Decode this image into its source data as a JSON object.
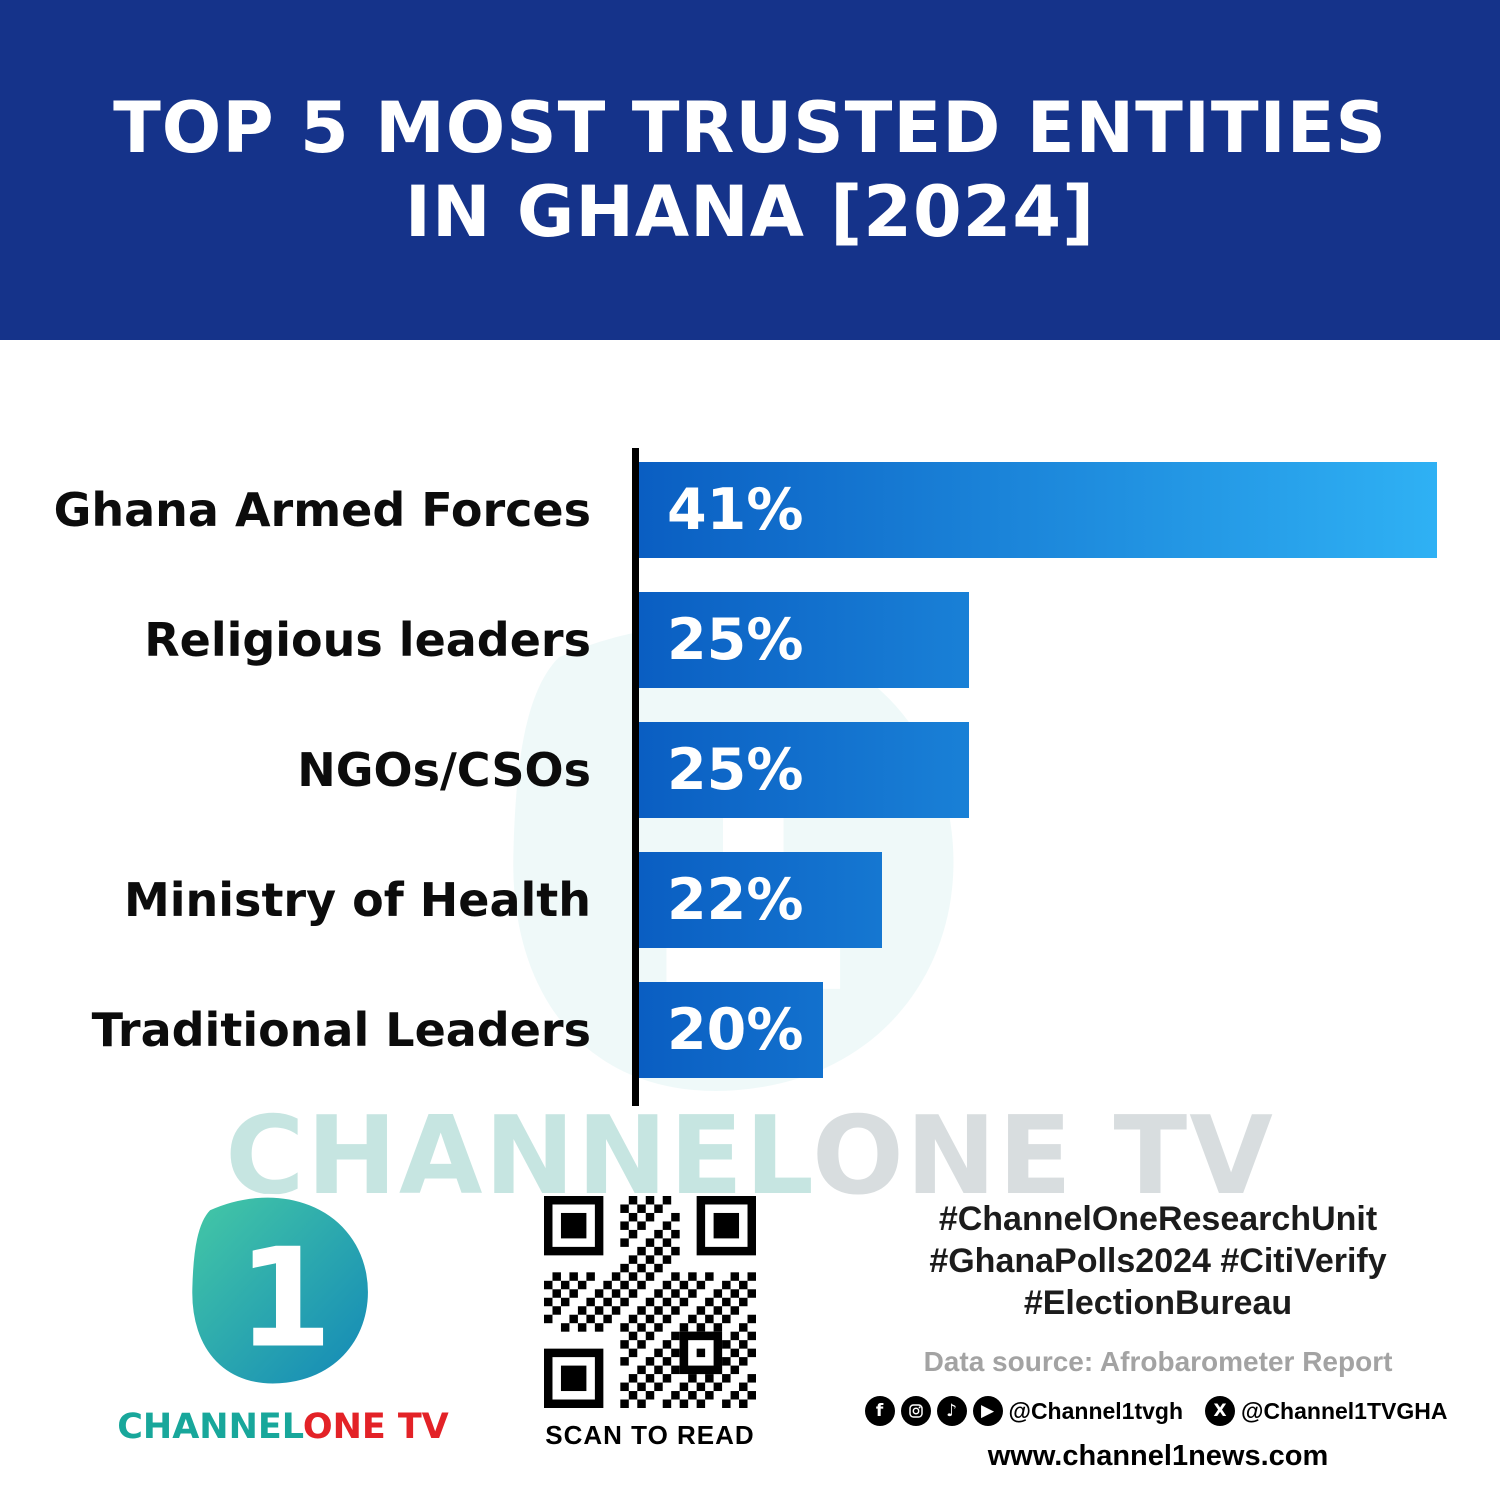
{
  "header": {
    "title_line1": "TOP 5 MOST TRUSTED ENTITIES",
    "title_line2": "IN GHANA [2024]"
  },
  "chart_data": {
    "type": "bar",
    "orientation": "horizontal",
    "title": "Top 5 Most Trusted Entities in Ghana [2024]",
    "categories": [
      "Ghana Armed Forces",
      "Religious leaders",
      "NGOs/CSOs",
      "Ministry of Health",
      "Traditional Leaders"
    ],
    "values": [
      41,
      25,
      25,
      22,
      20
    ],
    "value_labels": [
      "41%",
      "25%",
      "25%",
      "22%",
      "20%"
    ],
    "unit": "%",
    "xlim": [
      13.7,
      41
    ],
    "bar_gradient": [
      "#0a5ec2",
      "#2fb1f4"
    ],
    "axis_color": "#000000",
    "grid": false,
    "legend": false
  },
  "watermark": {
    "part1": "CHANNEL",
    "part2": "ONE TV"
  },
  "footer": {
    "logo": {
      "numeral": "1",
      "brand_channel": "CHANNEL",
      "brand_one": "ONE",
      "brand_tv": "TV"
    },
    "qr_caption": "SCAN TO READ",
    "hashtags": [
      "#ChannelOneResearchUnit",
      "#GhanaPolls2024 #CitiVerify",
      "#ElectionBureau"
    ],
    "data_source": "Data source: Afrobarometer Report",
    "social_handle_1": "@Channel1tvgh",
    "social_handle_2": "@Channel1TVGHA",
    "website": "www.channel1news.com"
  },
  "colors": {
    "header_bg": "#15338a",
    "logo_teal": "#18a79b",
    "logo_red": "#e32227"
  }
}
